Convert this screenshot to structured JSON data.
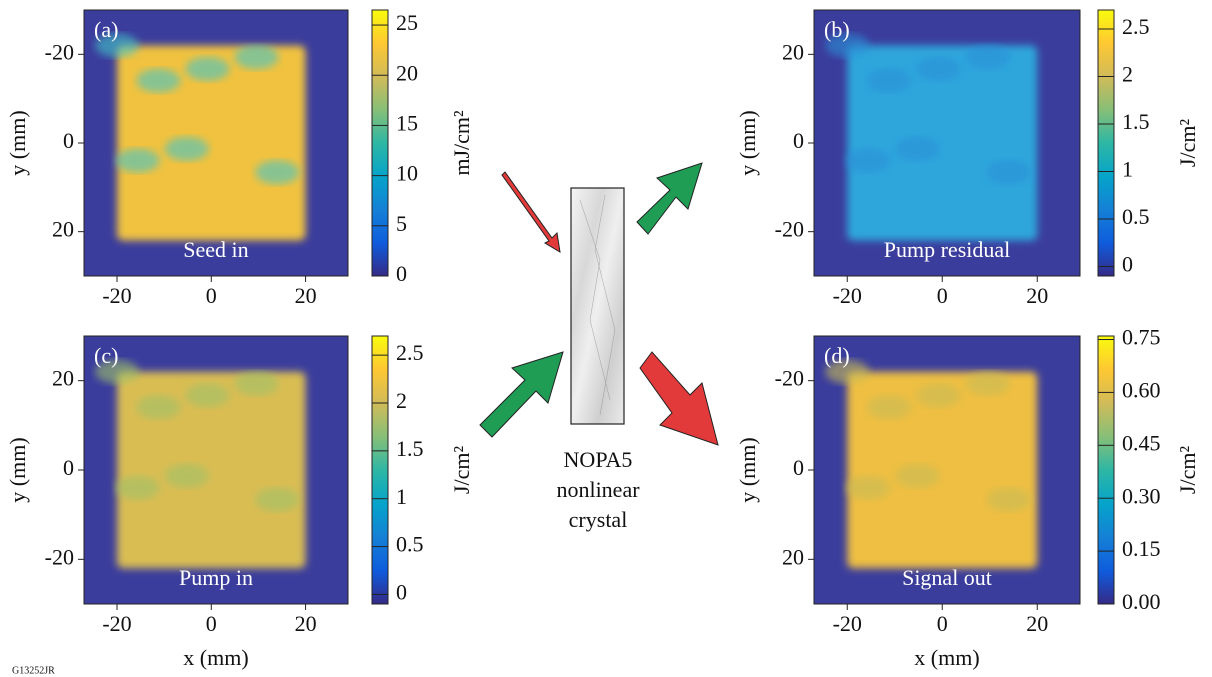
{
  "figure_id": "G13252JR",
  "background": "#3b3d9c",
  "colormap": [
    "#352a87",
    "#0f5cdd",
    "#1481d6",
    "#06a4ca",
    "#2eb7a4",
    "#87bf77",
    "#d1bb59",
    "#fec832",
    "#f9fb0e"
  ],
  "panels": [
    {
      "letter": "(a)",
      "caption": "Seed in",
      "fill": [
        "#f0c23f",
        "#43c4c8"
      ],
      "xlim": [
        -27,
        29
      ],
      "ylim": [
        30,
        -30
      ],
      "xticks": [
        -20,
        0,
        20
      ],
      "yticks": [
        -20,
        0,
        20
      ],
      "ylabel": "y (mm)",
      "colorbar": {
        "label": "mJ/cm²",
        "clim": [
          0,
          26.5
        ],
        "ticks": [
          0,
          5,
          10,
          15,
          20,
          25
        ]
      }
    },
    {
      "letter": "(b)",
      "caption": "Pump residual",
      "fill": [
        "#2ea6dc",
        "#2a8fd6"
      ],
      "xlim": [
        -27,
        29
      ],
      "ylim": [
        -30,
        30
      ],
      "xticks": [
        -20,
        0,
        20
      ],
      "yticks": [
        -20,
        0,
        20
      ],
      "ylabel": "y (mm)",
      "colorbar": {
        "label": "J/cm²",
        "clim": [
          -0.1,
          2.7
        ],
        "ticks": [
          0.0,
          0.5,
          1.0,
          1.5,
          2.0,
          2.5
        ]
      }
    },
    {
      "letter": "(c)",
      "caption": "Pump in",
      "fill": [
        "#d9bd52",
        "#9fc169"
      ],
      "xlim": [
        -27,
        29
      ],
      "ylim": [
        -30,
        30
      ],
      "xticks": [
        -20,
        0,
        20
      ],
      "yticks": [
        -20,
        0,
        20
      ],
      "ylabel": "y (mm)",
      "xlabel": "x (mm)",
      "colorbar": {
        "label": "J/cm²",
        "clim": [
          -0.1,
          2.7
        ],
        "ticks": [
          0.0,
          0.5,
          1.0,
          1.5,
          2.0,
          2.5
        ]
      }
    },
    {
      "letter": "(d)",
      "caption": "Signal out",
      "fill": [
        "#eebf43",
        "#c8bc57"
      ],
      "xlim": [
        -27,
        29
      ],
      "ylim": [
        30,
        -30
      ],
      "xticks": [
        -20,
        0,
        20
      ],
      "yticks": [
        -20,
        0,
        20
      ],
      "ylabel": "y (mm)",
      "xlabel": "x (mm)",
      "colorbar": {
        "label": "J/cm²",
        "clim": [
          0,
          0.76
        ],
        "ticks": [
          {
            "value": 0,
            "label": "0.00"
          },
          {
            "value": 0.15,
            "label": "0.15"
          },
          {
            "value": 0.3,
            "label": "0.30"
          },
          {
            "value": 0.45,
            "label": "0.45"
          },
          {
            "value": 0.6,
            "label": "0.60"
          },
          {
            "value": 0.75,
            "label": "0.75"
          }
        ]
      }
    }
  ],
  "crystal": {
    "lines": [
      "NOPA5",
      "nonlinear",
      "crystal"
    ]
  }
}
